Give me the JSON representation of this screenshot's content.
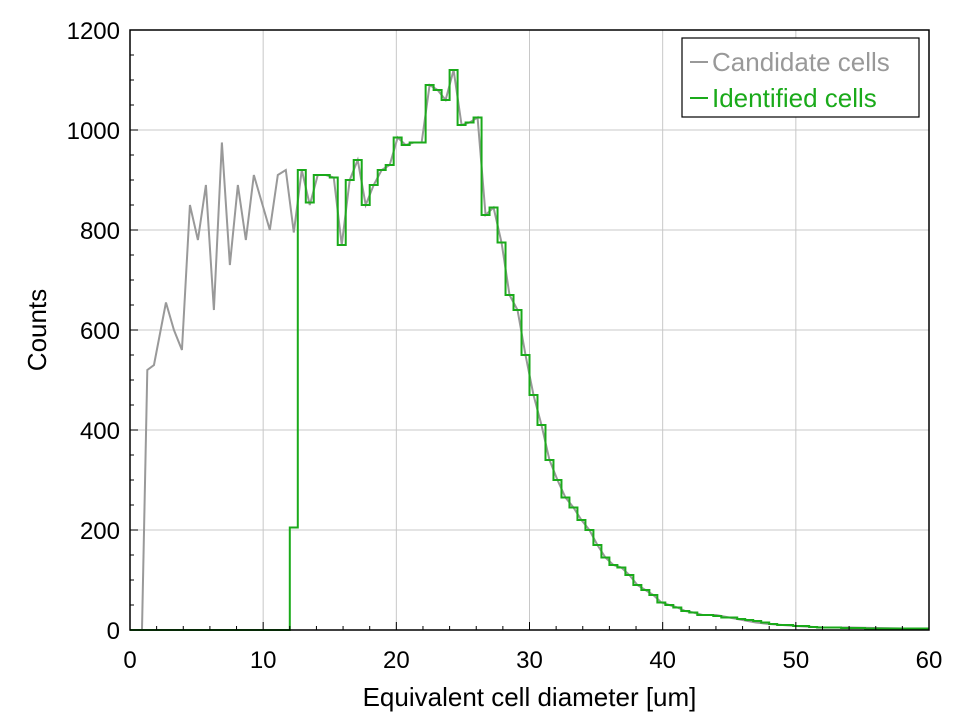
{
  "chart_data": {
    "type": "line",
    "title": "",
    "xlabel": "Equivalent cell diameter [um]",
    "ylabel": "Counts",
    "xlim": [
      0,
      60
    ],
    "ylim": [
      0,
      1200
    ],
    "xticks": [
      "0",
      "10",
      "20",
      "30",
      "40",
      "50",
      "60"
    ],
    "yticks": [
      "0",
      "200",
      "400",
      "600",
      "800",
      "1000",
      "1200"
    ],
    "grid": true,
    "legend_position": "top-right",
    "series": [
      {
        "name": "Candidate cells",
        "color": "#999999",
        "style": "line",
        "points": [
          [
            0.9,
            0
          ],
          [
            1.3,
            520
          ],
          [
            1.8,
            530
          ],
          [
            2.7,
            655
          ],
          [
            3.3,
            600
          ],
          [
            3.9,
            560
          ],
          [
            4.5,
            850
          ],
          [
            5.1,
            780
          ],
          [
            5.7,
            890
          ],
          [
            6.3,
            640
          ],
          [
            6.9,
            975
          ],
          [
            7.5,
            730
          ],
          [
            8.1,
            890
          ],
          [
            8.7,
            780
          ],
          [
            9.3,
            910
          ],
          [
            10.5,
            800
          ],
          [
            11.1,
            910
          ],
          [
            11.7,
            920
          ],
          [
            12.3,
            795
          ],
          [
            12.9,
            920
          ],
          [
            13.5,
            850
          ],
          [
            14.1,
            910
          ],
          [
            14.7,
            910
          ],
          [
            15.3,
            905
          ],
          [
            15.9,
            770
          ],
          [
            16.5,
            900
          ],
          [
            17.1,
            940
          ],
          [
            17.7,
            850
          ],
          [
            18.3,
            890
          ],
          [
            18.9,
            920
          ],
          [
            19.5,
            930
          ],
          [
            20.1,
            985
          ],
          [
            20.7,
            970
          ],
          [
            21.3,
            975
          ],
          [
            21.9,
            975
          ],
          [
            22.5,
            1090
          ],
          [
            23.1,
            1080
          ],
          [
            23.7,
            1060
          ],
          [
            24.3,
            1120
          ],
          [
            24.9,
            1010
          ],
          [
            25.5,
            1015
          ],
          [
            26.1,
            1025
          ],
          [
            26.7,
            830
          ],
          [
            27.3,
            845
          ],
          [
            27.9,
            775
          ],
          [
            28.5,
            670
          ],
          [
            29.1,
            640
          ],
          [
            29.7,
            550
          ],
          [
            30.3,
            470
          ],
          [
            30.9,
            410
          ],
          [
            31.5,
            340
          ],
          [
            32.1,
            300
          ],
          [
            32.7,
            265
          ],
          [
            33.3,
            245
          ],
          [
            33.9,
            220
          ],
          [
            34.5,
            200
          ],
          [
            35.1,
            170
          ],
          [
            35.7,
            145
          ],
          [
            36.3,
            130
          ],
          [
            36.9,
            125
          ],
          [
            37.5,
            110
          ],
          [
            38.1,
            90
          ],
          [
            38.7,
            80
          ],
          [
            39.3,
            70
          ],
          [
            39.9,
            55
          ],
          [
            40.5,
            50
          ],
          [
            41.1,
            45
          ],
          [
            41.7,
            38
          ],
          [
            42.3,
            35
          ],
          [
            43.0,
            30
          ],
          [
            44.0,
            30
          ],
          [
            45.0,
            25
          ],
          [
            46.0,
            20
          ],
          [
            47.0,
            15
          ],
          [
            48.0,
            12
          ],
          [
            49.0,
            10
          ],
          [
            50.0,
            8
          ],
          [
            52.0,
            5
          ],
          [
            54.0,
            5
          ],
          [
            56.0,
            4
          ],
          [
            58.0,
            3
          ],
          [
            59.5,
            3
          ]
        ]
      },
      {
        "name": "Identified cells",
        "color": "#1aaa1a",
        "style": "step",
        "step_start": 0,
        "step_width": 0.6,
        "values": [
          0,
          0,
          0,
          0,
          0,
          0,
          0,
          0,
          0,
          0,
          0,
          0,
          0,
          0,
          0,
          0,
          0,
          0,
          0,
          0,
          205,
          920,
          855,
          910,
          910,
          905,
          770,
          900,
          940,
          850,
          890,
          920,
          930,
          985,
          970,
          975,
          975,
          1090,
          1080,
          1060,
          1120,
          1010,
          1015,
          1025,
          830,
          845,
          775,
          670,
          640,
          550,
          470,
          410,
          340,
          300,
          265,
          245,
          220,
          200,
          170,
          145,
          130,
          125,
          110,
          90,
          80,
          70,
          55,
          50,
          45,
          38,
          35,
          30,
          30,
          28,
          25,
          25,
          22,
          20,
          18,
          15,
          12,
          10,
          10,
          8,
          8,
          6,
          5,
          5,
          5,
          4,
          4,
          4,
          3,
          3,
          3,
          3,
          3,
          3,
          3,
          3
        ]
      }
    ]
  }
}
